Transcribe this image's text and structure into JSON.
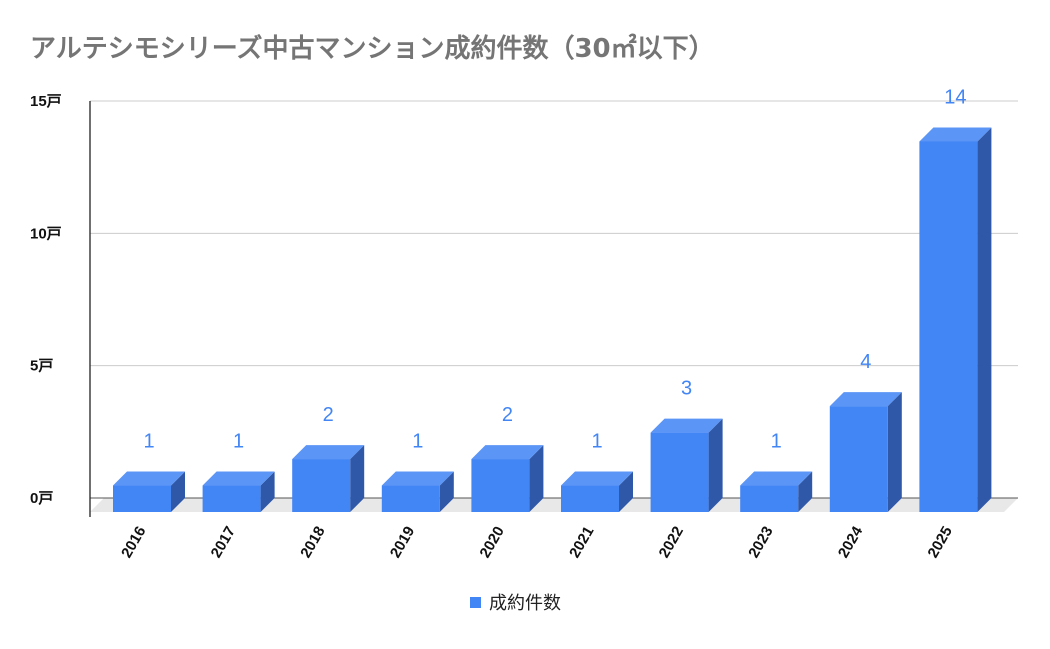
{
  "chart_data": {
    "type": "bar",
    "title": "アルテシモシリーズ中古マンション成約件数（30㎡以下）",
    "categories": [
      "2016",
      "2017",
      "2018",
      "2019",
      "2020",
      "2021",
      "2022",
      "2023",
      "2024",
      "2025"
    ],
    "series": [
      {
        "name": "成約件数",
        "values": [
          1,
          1,
          2,
          1,
          2,
          1,
          3,
          1,
          4,
          14
        ],
        "color": "#4285f4"
      }
    ],
    "y_ticks": [
      "0戸",
      "5戸",
      "10戸",
      "15戸"
    ],
    "ylim": [
      0,
      15
    ],
    "grid": true,
    "legend_position": "bottom",
    "style": "3d-column"
  }
}
